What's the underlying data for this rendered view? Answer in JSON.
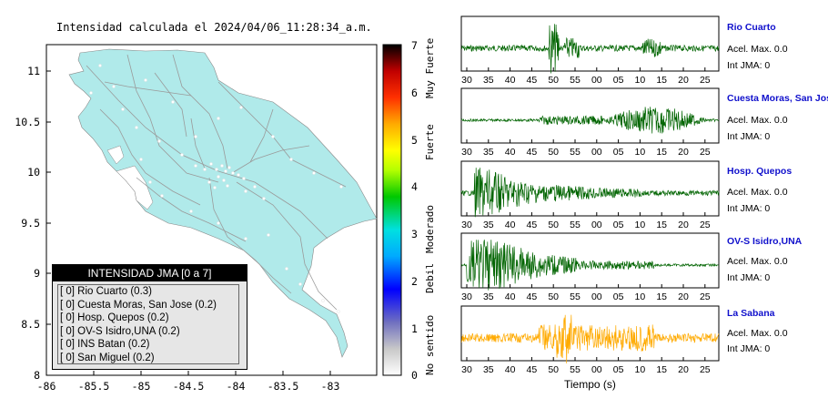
{
  "map": {
    "title": "Intensidad calculada el 2024/04/06_11:28:34_a.m.",
    "x_ticks": [
      "-86",
      "-85.5",
      "-85",
      "-84.5",
      "-84",
      "-83.5",
      "-83"
    ],
    "y_ticks": [
      "11",
      "10.5",
      "10",
      "9.5",
      "9",
      "8.5",
      "8"
    ]
  },
  "colorbar": {
    "ticks": [
      "0",
      "1",
      "2",
      "3",
      "4",
      "5",
      "6",
      "7"
    ],
    "labels": [
      "No sentido",
      "Debil",
      "Moderado",
      "Fuerte",
      "Muy Fuerte"
    ],
    "colors": [
      "#ffffff",
      "#c8c8c8",
      "#3a3ab4",
      "#0000ff",
      "#00aaff",
      "#00e0e0",
      "#00c800",
      "#b4ff00",
      "#ffff00",
      "#ffaa00",
      "#ff5000",
      "#ff0000",
      "#b40000",
      "#000000"
    ]
  },
  "legend": {
    "header": "INTENSIDAD JMA [0 a 7]",
    "items": [
      "[ 0] Rio Cuarto (0.3)",
      "[ 0] Cuesta Moras, San Jose (0.2)",
      "[ 0] Hosp. Quepos (0.2)",
      "[ 0] OV-S Isidro,UNA (0.2)",
      "[ 0] INS Batan (0.2)",
      "[ 0] San Miguel (0.2)"
    ]
  },
  "stations": [
    {
      "name": "Rio Cuarto",
      "acc": "Acel. Max. 0.0",
      "jma": "Int JMA: 0",
      "color": "#006400",
      "ticks": [
        "30",
        "35",
        "40",
        "45",
        "50",
        "55",
        "00",
        "05",
        "10",
        "15",
        "20",
        "25"
      ]
    },
    {
      "name": "Cuesta Moras, San Jose",
      "acc": "Acel. Max. 0.0",
      "jma": "Int JMA: 0",
      "color": "#006400",
      "ticks": [
        "30",
        "35",
        "40",
        "45",
        "50",
        "55",
        "00",
        "05",
        "10",
        "15",
        "20",
        "25"
      ]
    },
    {
      "name": "Hosp. Quepos",
      "acc": "Acel. Max. 0.0",
      "jma": "Int JMA: 0",
      "color": "#006400",
      "ticks": [
        "30",
        "35",
        "40",
        "45",
        "50",
        "55",
        "00",
        "05",
        "10",
        "15",
        "20",
        "25"
      ]
    },
    {
      "name": "OV-S Isidro,UNA",
      "acc": "Acel. Max. 0.0",
      "jma": "Int JMA: 0",
      "color": "#006400",
      "ticks": [
        "30",
        "35",
        "40",
        "45",
        "50",
        "55",
        "00",
        "05",
        "10",
        "15",
        "20",
        "25"
      ]
    },
    {
      "name": "La Sabana",
      "acc": "Acel. Max. 0.0",
      "jma": "Int JMA: 0",
      "color": "#ffaa00",
      "ticks": [
        "30",
        "35",
        "40",
        "45",
        "50",
        "55",
        "00",
        "05",
        "10",
        "15",
        "20",
        "25"
      ]
    }
  ],
  "xlabel": "Tiempo (s)"
}
